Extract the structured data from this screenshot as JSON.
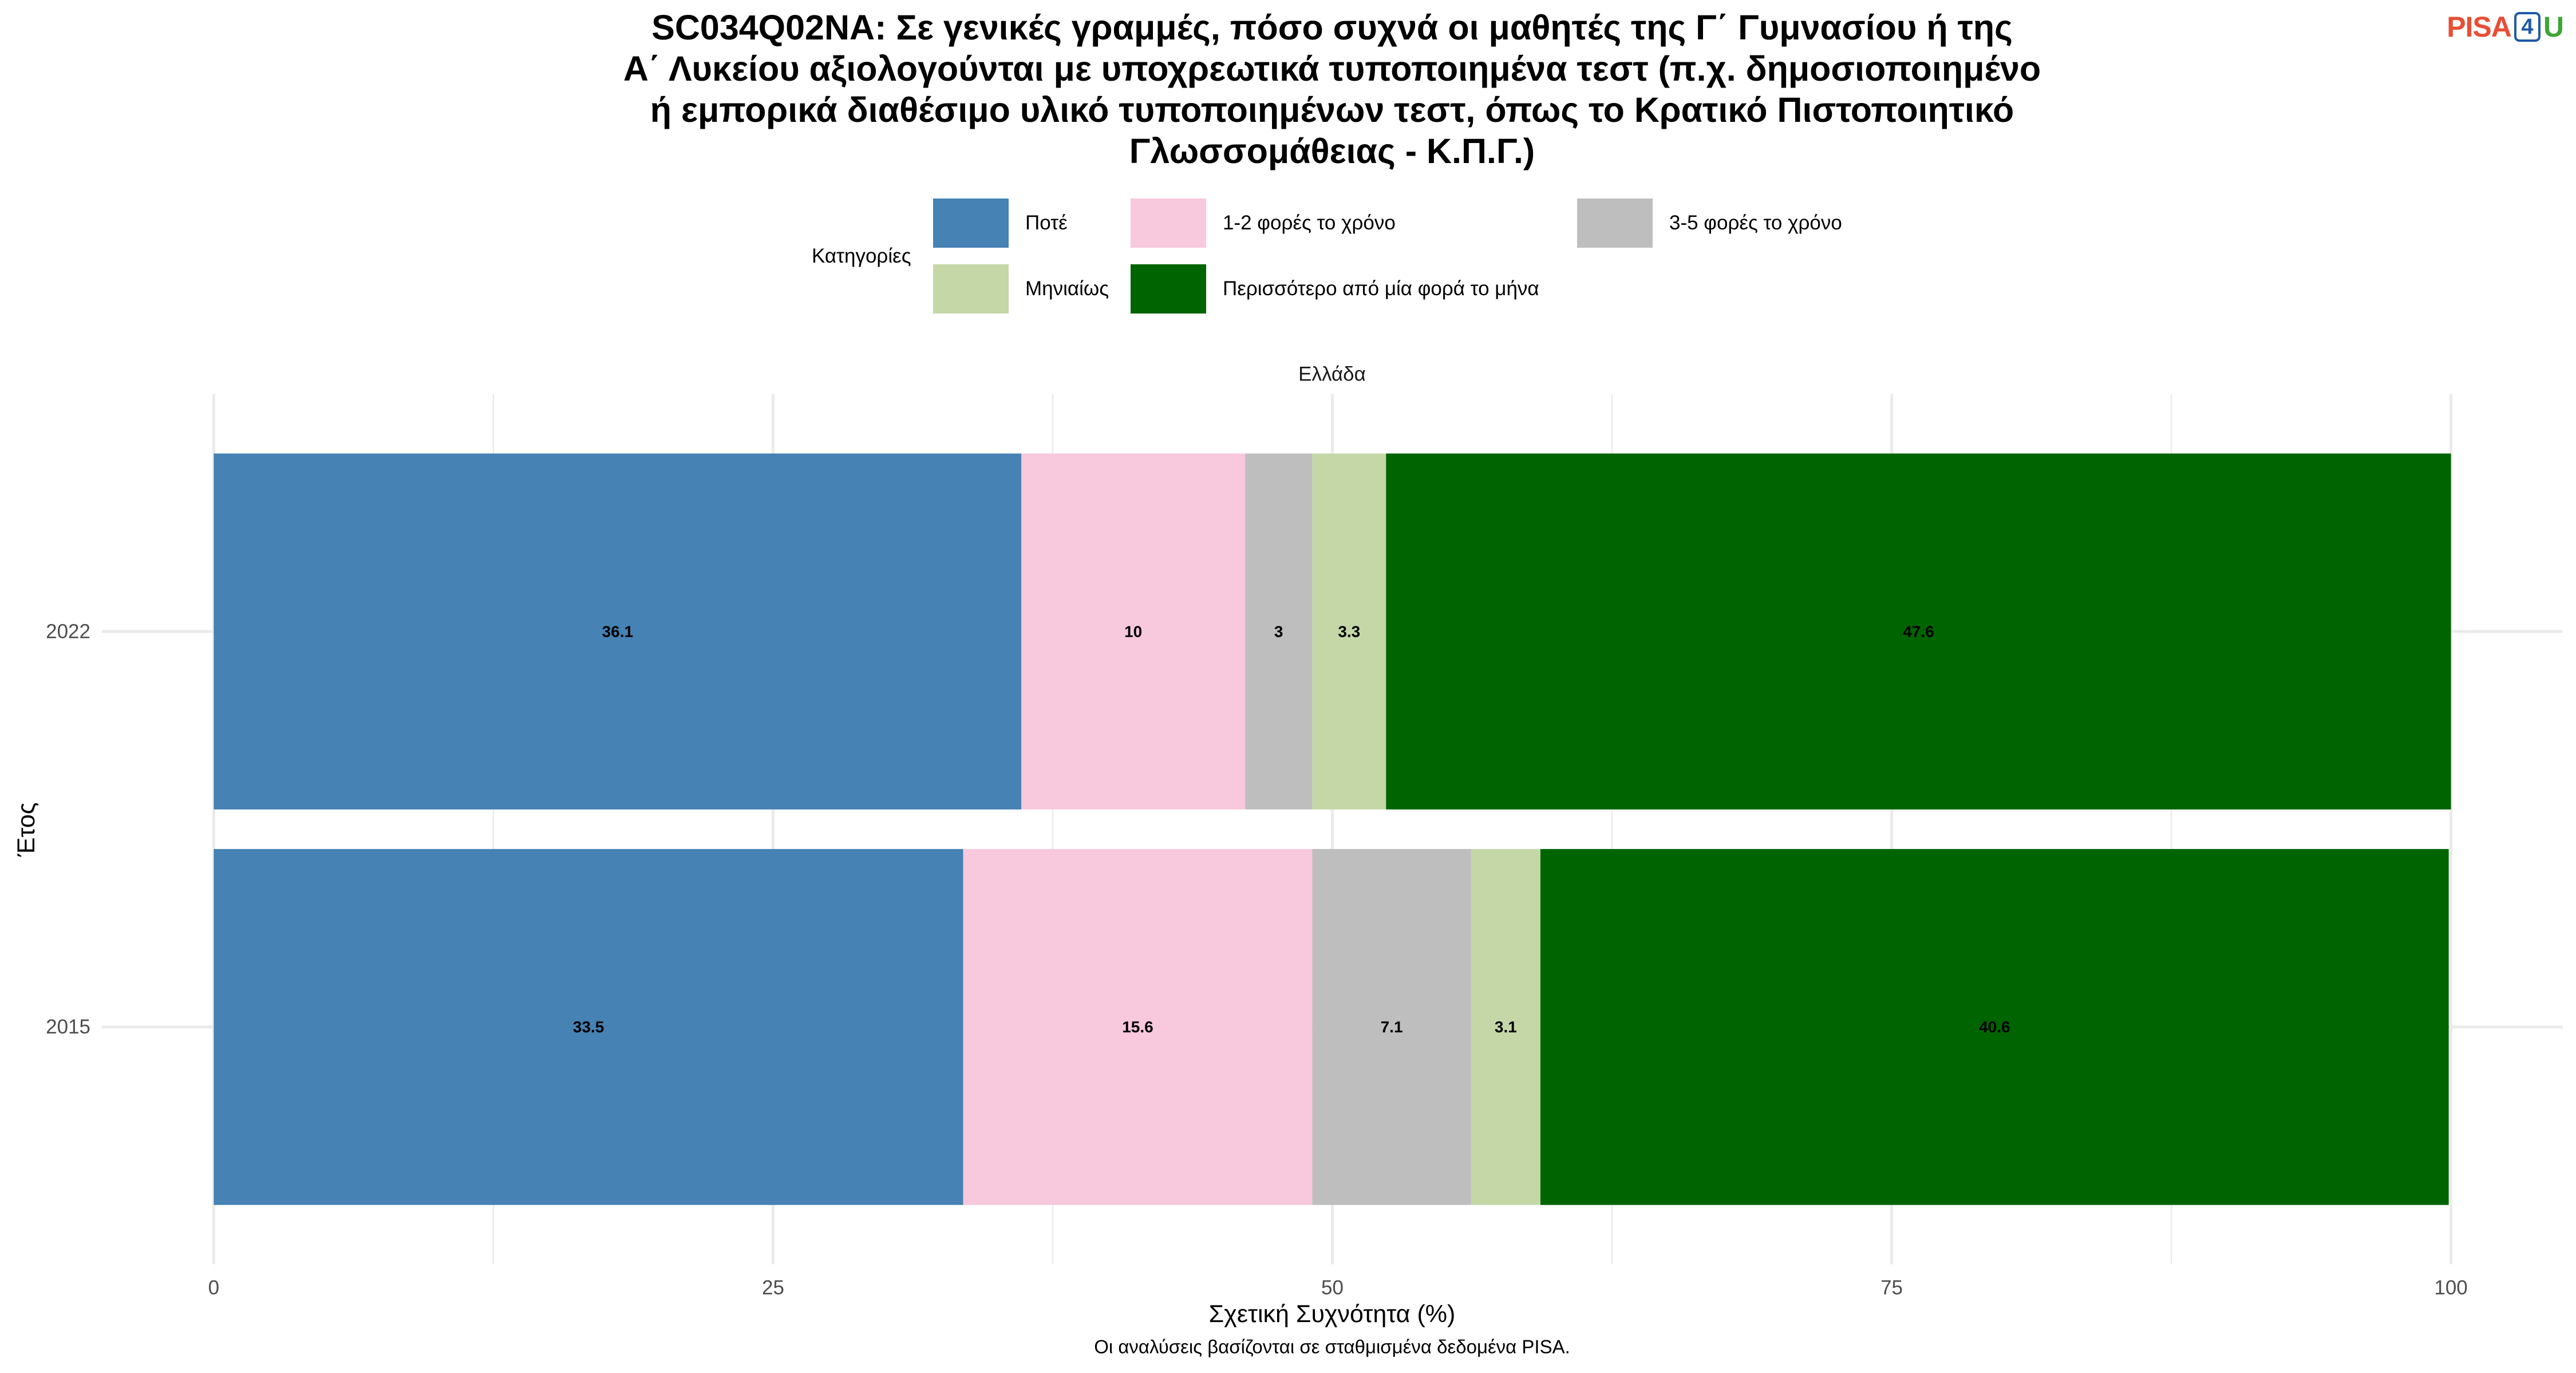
{
  "logo": {
    "text_left": "PISA",
    "text_box": "4",
    "text_right": "U",
    "colors": {
      "left": "#E94E34",
      "box": "#1E5AA8",
      "right": "#3FA535"
    }
  },
  "chart_data": {
    "type": "bar",
    "orientation": "horizontal",
    "stacked": true,
    "title": [
      "SC034Q02NA: Σε γενικές γραμμές, πόσο συχνά οι μαθητές της Γ΄ Γυμνασίου ή της",
      "Α΄ Λυκείου αξιολογούνται με υποχρεωτικά τυποποιημένα τεστ (π.χ. δημοσιοποιημένο",
      "ή εμπορικά διαθέσιμο υλικό τυποποιημένων τεστ, όπως το Κρατικό Πιστοποιητικό",
      "Γλωσσομάθειας - Κ.Π.Γ.)"
    ],
    "facet": "Ελλάδα",
    "categories": [
      "2022",
      "2015"
    ],
    "series": [
      {
        "name": "Ποτέ",
        "color": "#4682B4",
        "values": [
          36.1,
          33.5
        ]
      },
      {
        "name": "1-2 φορές το χρόνο",
        "color": "#F8C8DC",
        "values": [
          10,
          15.6
        ]
      },
      {
        "name": "3-5 φορές το χρόνο",
        "color": "#BEBEBE",
        "values": [
          3,
          7.1
        ]
      },
      {
        "name": "Μηνιαίως",
        "color": "#C5D7A7",
        "values": [
          3.3,
          3.1
        ]
      },
      {
        "name": "Περισσότερο από μία φορά το μήνα",
        "color": "#006400",
        "values": [
          47.6,
          40.6
        ]
      }
    ],
    "xlabel": "Σχετική Συχνότητα (%)",
    "ylabel": "Έτος",
    "xlim": [
      0,
      100
    ],
    "xticks": [
      0,
      25,
      50,
      75,
      100
    ],
    "legend_title": "Κατηγορίες",
    "legend_position": "top",
    "grid": true,
    "caption": "Οι αναλύσεις βασίζονται σε σταθμισμένα δεδομένα PISA."
  }
}
